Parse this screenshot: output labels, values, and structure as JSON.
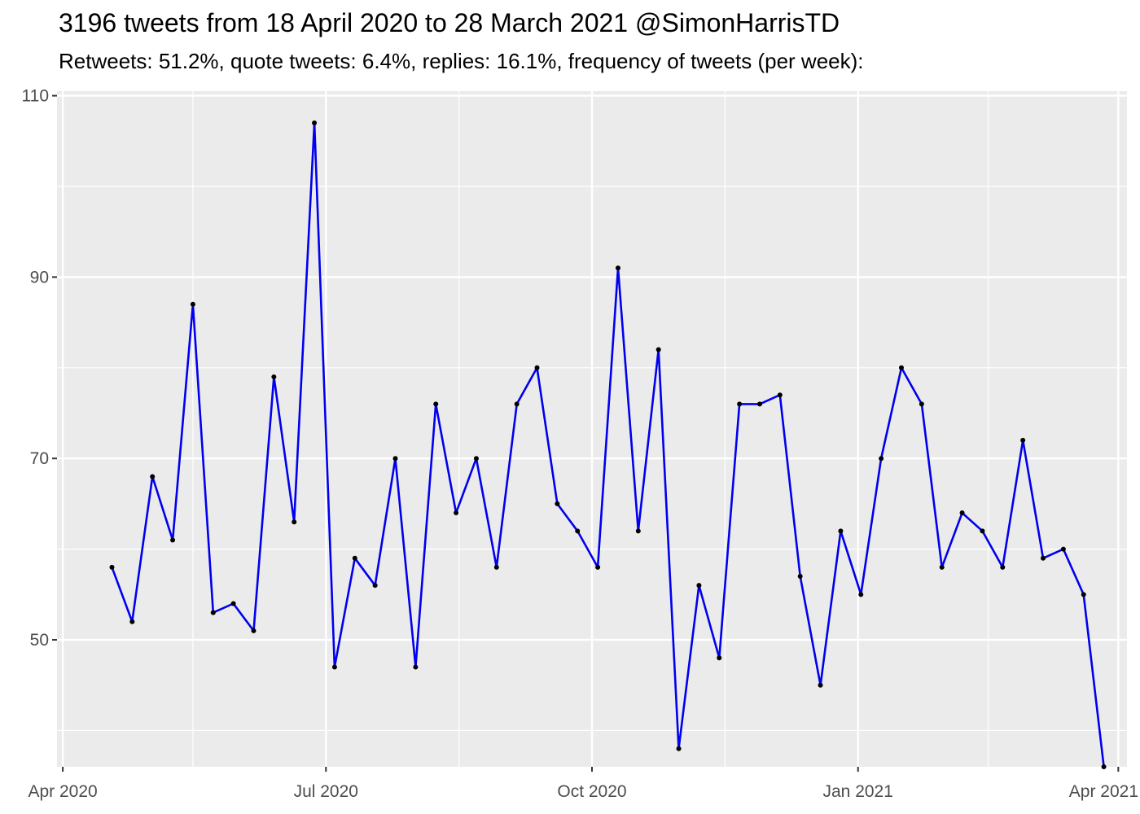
{
  "chart_data": {
    "type": "line",
    "title": "3196 tweets from 18 April 2020 to 28 March 2021 @SimonHarrisTD",
    "subtitle": "Retweets: 51.2%, quote tweets: 6.4%, replies: 16.1%, frequency of tweets (per week):",
    "xlabel": "",
    "ylabel": "",
    "ylim": [
      36,
      110.5
    ],
    "xlim": [
      "2020-03-30",
      "2021-04-04"
    ],
    "y_ticks": [
      50,
      70,
      90,
      110
    ],
    "y_minor_ticks": [
      40,
      60,
      80,
      100
    ],
    "x_ticks": [
      {
        "date": "2020-04-01",
        "label": "Apr 2020"
      },
      {
        "date": "2020-07-01",
        "label": "Jul 2020"
      },
      {
        "date": "2020-10-01",
        "label": "Oct 2020"
      },
      {
        "date": "2021-01-01",
        "label": "Jan 2021"
      },
      {
        "date": "2021-04-01",
        "label": "Apr 2021"
      }
    ],
    "x_minor_ticks": [
      "2020-05-16",
      "2020-08-16",
      "2020-11-16",
      "2021-02-15"
    ],
    "grid": true,
    "line_color": "#0000ee",
    "point_color": "#000000",
    "panel_background": "#ebebeb",
    "series": [
      {
        "x": [
          "2020-04-18",
          "2020-04-25",
          "2020-05-02",
          "2020-05-09",
          "2020-05-16",
          "2020-05-23",
          "2020-05-30",
          "2020-06-06",
          "2020-06-13",
          "2020-06-20",
          "2020-06-27",
          "2020-07-04",
          "2020-07-11",
          "2020-07-18",
          "2020-07-25",
          "2020-08-01",
          "2020-08-08",
          "2020-08-15",
          "2020-08-22",
          "2020-08-29",
          "2020-09-05",
          "2020-09-12",
          "2020-09-19",
          "2020-09-26",
          "2020-10-03",
          "2020-10-10",
          "2020-10-17",
          "2020-10-24",
          "2020-10-31",
          "2020-11-07",
          "2020-11-14",
          "2020-11-21",
          "2020-11-28",
          "2020-12-05",
          "2020-12-12",
          "2020-12-19",
          "2020-12-26",
          "2021-01-02",
          "2021-01-09",
          "2021-01-16",
          "2021-01-23",
          "2021-01-30",
          "2021-02-06",
          "2021-02-13",
          "2021-02-20",
          "2021-02-27",
          "2021-03-06",
          "2021-03-13",
          "2021-03-20",
          "2021-03-27"
        ],
        "values": [
          58,
          52,
          68,
          61,
          87,
          53,
          54,
          51,
          79,
          63,
          107,
          47,
          59,
          56,
          70,
          47,
          76,
          64,
          70,
          58,
          76,
          80,
          65,
          62,
          58,
          91,
          62,
          82,
          38,
          56,
          48,
          76,
          76,
          77,
          57,
          45,
          62,
          55,
          70,
          80,
          76,
          58,
          64,
          62,
          58,
          72,
          59,
          60,
          55,
          36
        ]
      }
    ]
  }
}
